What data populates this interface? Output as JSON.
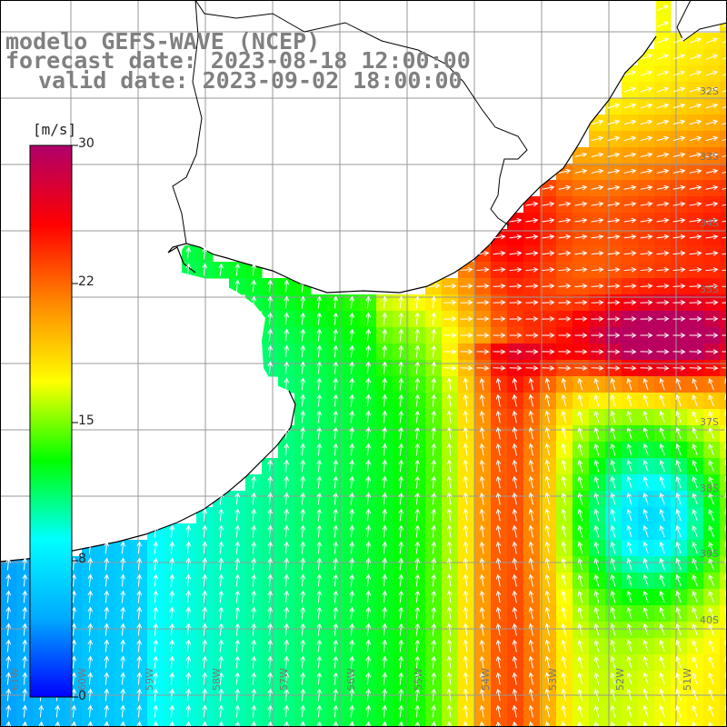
{
  "title": {
    "line1": "modelo GEFS-WAVE (NCEP)",
    "line2": "forecast date: 2023-08-18 12:00:00",
    "line3": "valid date: 2023-09-02 18:00:00"
  },
  "legend": {
    "unit": "[m/s]",
    "ticks": [
      "30",
      "22",
      "15",
      "8",
      "0"
    ],
    "tick_values": [
      30,
      22,
      15,
      8,
      0
    ],
    "stops": [
      "#0000ff",
      "#00aaff",
      "#00ffff",
      "#00ff00",
      "#ffff00",
      "#ff8800",
      "#ff0000",
      "#b0006a"
    ]
  },
  "map": {
    "lat_labels": [
      "32S",
      "33S",
      "34S",
      "35S",
      "37S",
      "38S",
      "39S",
      "40S"
    ],
    "lon_labels": [
      "61W",
      "60W",
      "59W",
      "58W",
      "57W",
      "56W",
      "55W",
      "54W",
      "53W",
      "52W",
      "51W"
    ],
    "colors": {
      "land": "#ffffff",
      "grid": "#999999",
      "coast": "#000000",
      "vectors": "#ffffff"
    }
  }
}
